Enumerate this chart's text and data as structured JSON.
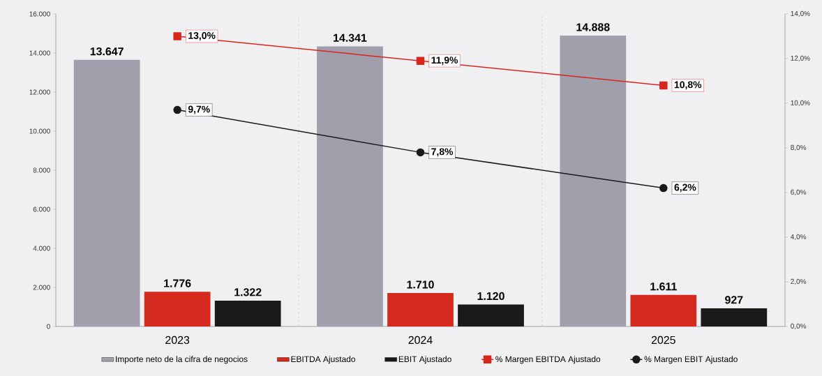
{
  "chart_data": {
    "type": "bar",
    "categories": [
      "2023",
      "2024",
      "2025"
    ],
    "series": [
      {
        "name": "Importe neto de la cifra de negocios",
        "color": "#a09fab",
        "values": [
          13647,
          14341,
          14888
        ],
        "value_labels": [
          "13.647",
          "14.341",
          "14.888"
        ]
      },
      {
        "name": "EBITDA Ajustado",
        "color": "#d52b1e",
        "values": [
          1776,
          1710,
          1611
        ],
        "value_labels": [
          "1.776",
          "1.710",
          "1.611"
        ]
      },
      {
        "name": "EBIT Ajustado",
        "color": "#1a1a1a",
        "values": [
          1322,
          1120,
          927
        ],
        "value_labels": [
          "1.322",
          "1.120",
          "927"
        ]
      },
      {
        "name": "% Margen EBITDA Ajustado",
        "type": "line",
        "axis": "y2",
        "marker": "square",
        "color": "#d9261c",
        "values": [
          13.0,
          11.9,
          10.8
        ],
        "value_labels": [
          "13,0%",
          "11,9%",
          "10,8%"
        ]
      },
      {
        "name": "% Margen EBIT Ajustado",
        "type": "line",
        "axis": "y2",
        "marker": "circle",
        "color": "#1a1a1a",
        "values": [
          9.7,
          7.8,
          6.2
        ],
        "value_labels": [
          "9,7%",
          "7,8%",
          "6,2%"
        ]
      }
    ],
    "ylim": [
      0,
      16000
    ],
    "yticks": [
      {
        "value": 0,
        "label": "0"
      },
      {
        "value": 2000,
        "label": "2.000"
      },
      {
        "value": 4000,
        "label": "4.000"
      },
      {
        "value": 6000,
        "label": "6.000"
      },
      {
        "value": 8000,
        "label": "8.000"
      },
      {
        "value": 10000,
        "label": "10.000"
      },
      {
        "value": 12000,
        "label": "12.000"
      },
      {
        "value": 14000,
        "label": "14.000"
      },
      {
        "value": 16000,
        "label": "16.000"
      }
    ],
    "y2lim": [
      0,
      14
    ],
    "y2ticks": [
      {
        "value": 0,
        "label": "0,0%"
      },
      {
        "value": 2,
        "label": "2,0%"
      },
      {
        "value": 4,
        "label": "4,0%"
      },
      {
        "value": 6,
        "label": "6,0%"
      },
      {
        "value": 8,
        "label": "8,0%"
      },
      {
        "value": 10,
        "label": "10,0%"
      },
      {
        "value": 12,
        "label": "12,0%"
      },
      {
        "value": 14,
        "label": "14,0%"
      }
    ],
    "grid": "x",
    "legend": "bottom"
  }
}
